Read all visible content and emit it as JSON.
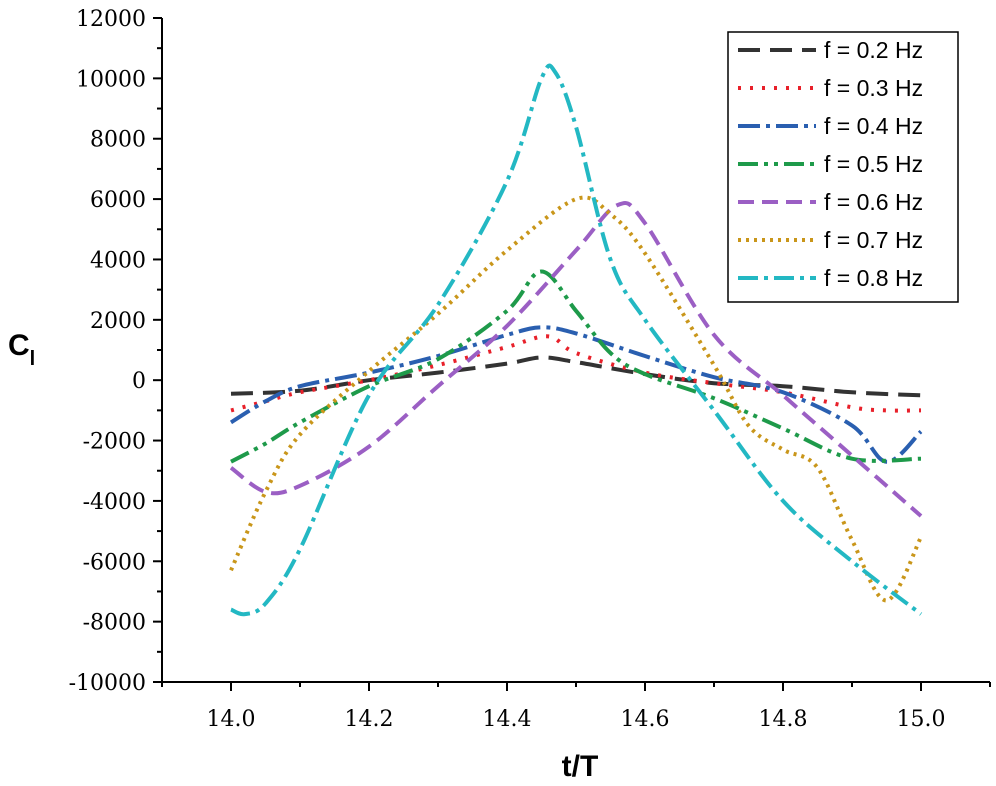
{
  "chart_data": {
    "type": "line",
    "title": "",
    "xlabel": "t/T",
    "ylabel_main": "C",
    "ylabel_sub": "l",
    "xlim": [
      13.9,
      15.1
    ],
    "ylim": [
      -10000,
      12000
    ],
    "x_ticks": [
      14.0,
      14.2,
      14.4,
      14.6,
      14.8,
      15.0
    ],
    "x_tick_labels": [
      "14.0",
      "14.2",
      "14.4",
      "14.6",
      "14.8",
      "15.0"
    ],
    "y_ticks": [
      -10000,
      -8000,
      -6000,
      -4000,
      -2000,
      0,
      2000,
      4000,
      6000,
      8000,
      10000,
      12000
    ],
    "y_tick_labels": [
      "-10000",
      "-8000",
      "-6000",
      "-4000",
      "-2000",
      "0",
      "2000",
      "4000",
      "6000",
      "8000",
      "10000",
      "12000"
    ],
    "grid": false,
    "legend_position": "top-right",
    "series": [
      {
        "name": "f = 0.2 Hz",
        "color": "#333333",
        "dash": "22,10",
        "width": 4,
        "x": [
          14.0,
          14.1,
          14.2,
          14.3,
          14.4,
          14.45,
          14.5,
          14.6,
          14.7,
          14.8,
          14.9,
          15.0
        ],
        "y": [
          -450,
          -350,
          0,
          250,
          550,
          750,
          600,
          200,
          -100,
          -200,
          -400,
          -500
        ]
      },
      {
        "name": "f = 0.3 Hz",
        "color": "#e8202a",
        "dash": "3,9",
        "width": 4,
        "x": [
          14.0,
          14.05,
          14.1,
          14.2,
          14.3,
          14.4,
          14.46,
          14.5,
          14.6,
          14.7,
          14.8,
          14.9,
          14.95,
          15.0
        ],
        "y": [
          -1000,
          -700,
          -400,
          0,
          500,
          1100,
          1450,
          900,
          250,
          -100,
          -400,
          -900,
          -1000,
          -1000
        ]
      },
      {
        "name": "f = 0.4 Hz",
        "color": "#2a5fb0",
        "dash": "22,6,4,6",
        "width": 4,
        "x": [
          14.0,
          14.05,
          14.1,
          14.2,
          14.3,
          14.4,
          14.45,
          14.5,
          14.6,
          14.7,
          14.8,
          14.9,
          14.95,
          15.0
        ],
        "y": [
          -1400,
          -700,
          -200,
          250,
          800,
          1500,
          1750,
          1550,
          800,
          100,
          -400,
          -1500,
          -2700,
          -1700
        ]
      },
      {
        "name": "f = 0.5 Hz",
        "color": "#1e9a4a",
        "dash": "20,6,4,6,4,6",
        "width": 4,
        "x": [
          14.0,
          14.05,
          14.1,
          14.2,
          14.3,
          14.4,
          14.45,
          14.5,
          14.55,
          14.6,
          14.7,
          14.8,
          14.9,
          15.0
        ],
        "y": [
          -2700,
          -2100,
          -1400,
          -200,
          700,
          2300,
          3600,
          2300,
          900,
          200,
          -600,
          -1600,
          -2600,
          -2600
        ]
      },
      {
        "name": "f = 0.6 Hz",
        "color": "#9b5fc4",
        "dash": "16,8",
        "width": 4,
        "x": [
          14.0,
          14.05,
          14.1,
          14.2,
          14.3,
          14.4,
          14.5,
          14.56,
          14.6,
          14.7,
          14.8,
          14.9,
          15.0
        ],
        "y": [
          -2900,
          -3700,
          -3500,
          -2200,
          -200,
          1800,
          4300,
          5800,
          5200,
          1500,
          -500,
          -2500,
          -4500
        ]
      },
      {
        "name": "f = 0.7 Hz",
        "color": "#c9961a",
        "dash": "3,5",
        "width": 4,
        "x": [
          14.0,
          14.05,
          14.1,
          14.2,
          14.3,
          14.4,
          14.5,
          14.55,
          14.6,
          14.7,
          14.75,
          14.8,
          14.85,
          14.9,
          14.95,
          15.0
        ],
        "y": [
          -6300,
          -3700,
          -1800,
          300,
          2200,
          4300,
          6000,
          5500,
          4200,
          500,
          -1500,
          -2300,
          -2900,
          -5300,
          -7300,
          -5200
        ]
      },
      {
        "name": "f = 0.8 Hz",
        "color": "#23b8c3",
        "dash": "20,6,4,6",
        "width": 4,
        "x": [
          14.0,
          14.02,
          14.05,
          14.1,
          14.2,
          14.3,
          14.4,
          14.45,
          14.47,
          14.5,
          14.55,
          14.6,
          14.7,
          14.8,
          14.9,
          15.0
        ],
        "y": [
          -7600,
          -7750,
          -7400,
          -5600,
          -500,
          2500,
          6600,
          10000,
          10200,
          8400,
          4000,
          2000,
          -1000,
          -4000,
          -6000,
          -7750
        ]
      }
    ]
  }
}
